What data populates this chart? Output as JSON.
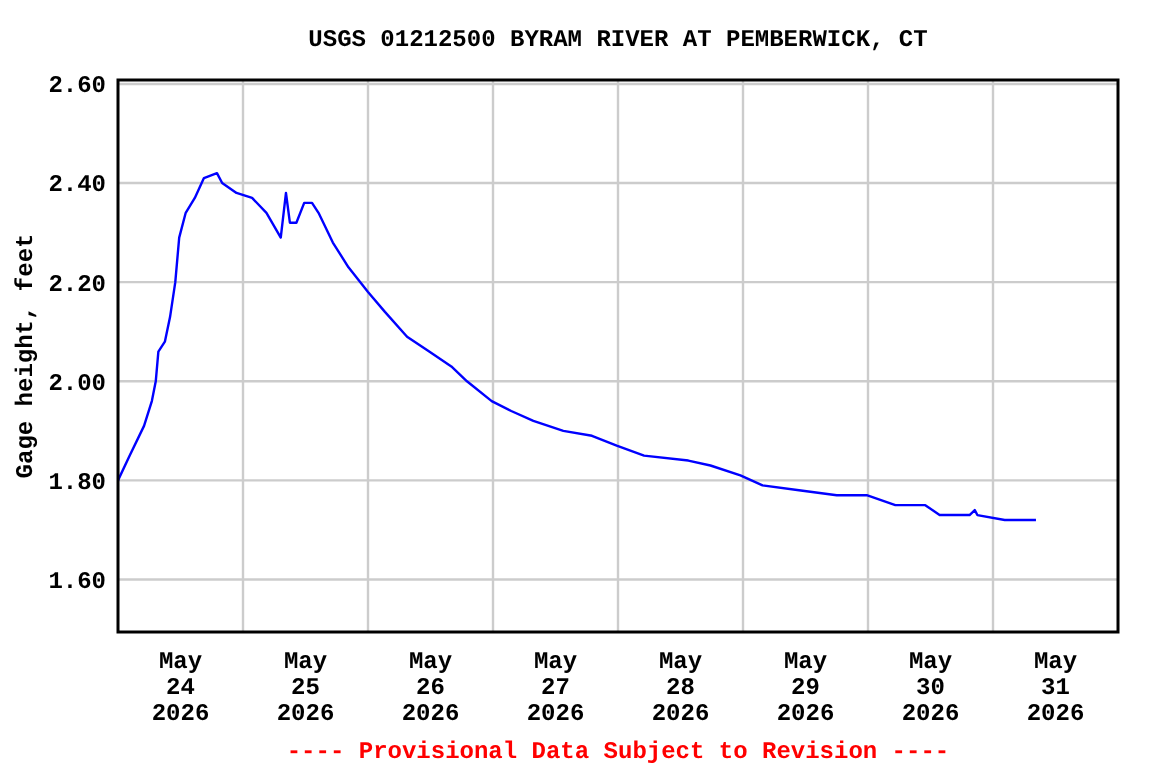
{
  "chart_data": {
    "type": "line",
    "title": "USGS 01212500 BYRAM RIVER AT PEMBERWICK, CT",
    "ylabel": "Gage height, feet",
    "annotations": [
      "---- Provisional Data Subject to Revision ----"
    ],
    "xlim": [
      "2026-05-24T00:00",
      "2026-06-01T00:00"
    ],
    "xticks": [
      {
        "value": "2026-05-24T12:00",
        "label": "May\n24\n2026"
      },
      {
        "value": "2026-05-25T00:00",
        "label": null
      },
      {
        "value": "2026-05-25T12:00",
        "label": "May\n25\n2026"
      },
      {
        "value": "2026-05-26T00:00",
        "label": null
      },
      {
        "value": "2026-05-26T12:00",
        "label": "May\n26\n2026"
      },
      {
        "value": "2026-05-27T00:00",
        "label": null
      },
      {
        "value": "2026-05-27T12:00",
        "label": "May\n27\n2026"
      },
      {
        "value": "2026-05-28T00:00",
        "label": null
      },
      {
        "value": "2026-05-28T12:00",
        "label": "May\n28\n2026"
      },
      {
        "value": "2026-05-29T00:00",
        "label": null
      },
      {
        "value": "2026-05-29T12:00",
        "label": "May\n29\n2026"
      },
      {
        "value": "2026-05-30T00:00",
        "label": null
      },
      {
        "value": "2026-05-30T12:00",
        "label": "May\n30\n2026"
      },
      {
        "value": "2026-05-31T00:00",
        "label": null
      },
      {
        "value": "2026-05-31T12:00",
        "label": "May\n31\n2026"
      }
    ],
    "ylim": [
      1.494,
      2.608
    ],
    "yticks": [
      {
        "value": 1.6,
        "label": "1.60"
      },
      {
        "value": 1.8,
        "label": "1.80"
      },
      {
        "value": 2.0,
        "label": "2.00"
      },
      {
        "value": 2.2,
        "label": "2.20"
      },
      {
        "value": 2.4,
        "label": "2.40"
      },
      {
        "value": 2.6,
        "label": "2.60"
      }
    ],
    "grid": true,
    "marker": "none",
    "line_style": "solid",
    "series": [
      {
        "color": "#0000ff",
        "x": [
          "2026-05-24T00:00",
          "2026-05-24T02:15",
          "2026-05-24T05:00",
          "2026-05-24T06:30",
          "2026-05-24T07:15",
          "2026-05-24T07:45",
          "2026-05-24T09:00",
          "2026-05-24T10:00",
          "2026-05-24T11:00",
          "2026-05-24T11:45",
          "2026-05-24T13:00",
          "2026-05-24T14:45",
          "2026-05-24T16:30",
          "2026-05-24T19:00",
          "2026-05-24T20:00",
          "2026-05-24T22:45",
          "2026-05-25T01:45",
          "2026-05-25T04:30",
          "2026-05-25T07:15",
          "2026-05-25T08:15",
          "2026-05-25T09:00",
          "2026-05-25T10:15",
          "2026-05-25T11:45",
          "2026-05-25T13:15",
          "2026-05-25T14:30",
          "2026-05-25T17:15",
          "2026-05-25T20:15",
          "2026-05-26T00:00",
          "2026-05-26T03:15",
          "2026-05-26T07:30",
          "2026-05-26T11:45",
          "2026-05-26T16:00",
          "2026-05-26T19:00",
          "2026-05-26T23:45",
          "2026-05-27T03:30",
          "2026-05-27T07:45",
          "2026-05-27T13:30",
          "2026-05-27T19:00",
          "2026-05-27T23:45",
          "2026-05-28T05:00",
          "2026-05-28T13:30",
          "2026-05-28T17:45",
          "2026-05-28T23:30",
          "2026-05-29T03:45",
          "2026-05-29T10:45",
          "2026-05-29T18:00",
          "2026-05-29T23:45",
          "2026-05-30T05:15",
          "2026-05-30T11:00",
          "2026-05-30T13:45",
          "2026-05-30T19:30",
          "2026-05-30T20:30",
          "2026-05-30T21:00",
          "2026-05-31T02:15",
          "2026-05-31T08:15"
        ],
        "values": [
          1.8,
          1.85,
          1.91,
          1.96,
          2.0,
          2.06,
          2.08,
          2.13,
          2.2,
          2.29,
          2.34,
          2.37,
          2.41,
          2.42,
          2.4,
          2.38,
          2.37,
          2.34,
          2.29,
          2.38,
          2.32,
          2.32,
          2.36,
          2.36,
          2.34,
          2.28,
          2.23,
          2.18,
          2.14,
          2.09,
          2.06,
          2.03,
          2.0,
          1.96,
          1.94,
          1.92,
          1.9,
          1.89,
          1.87,
          1.85,
          1.84,
          1.83,
          1.81,
          1.79,
          1.78,
          1.77,
          1.77,
          1.75,
          1.75,
          1.73,
          1.73,
          1.74,
          1.73,
          1.72,
          1.72
        ]
      }
    ]
  }
}
